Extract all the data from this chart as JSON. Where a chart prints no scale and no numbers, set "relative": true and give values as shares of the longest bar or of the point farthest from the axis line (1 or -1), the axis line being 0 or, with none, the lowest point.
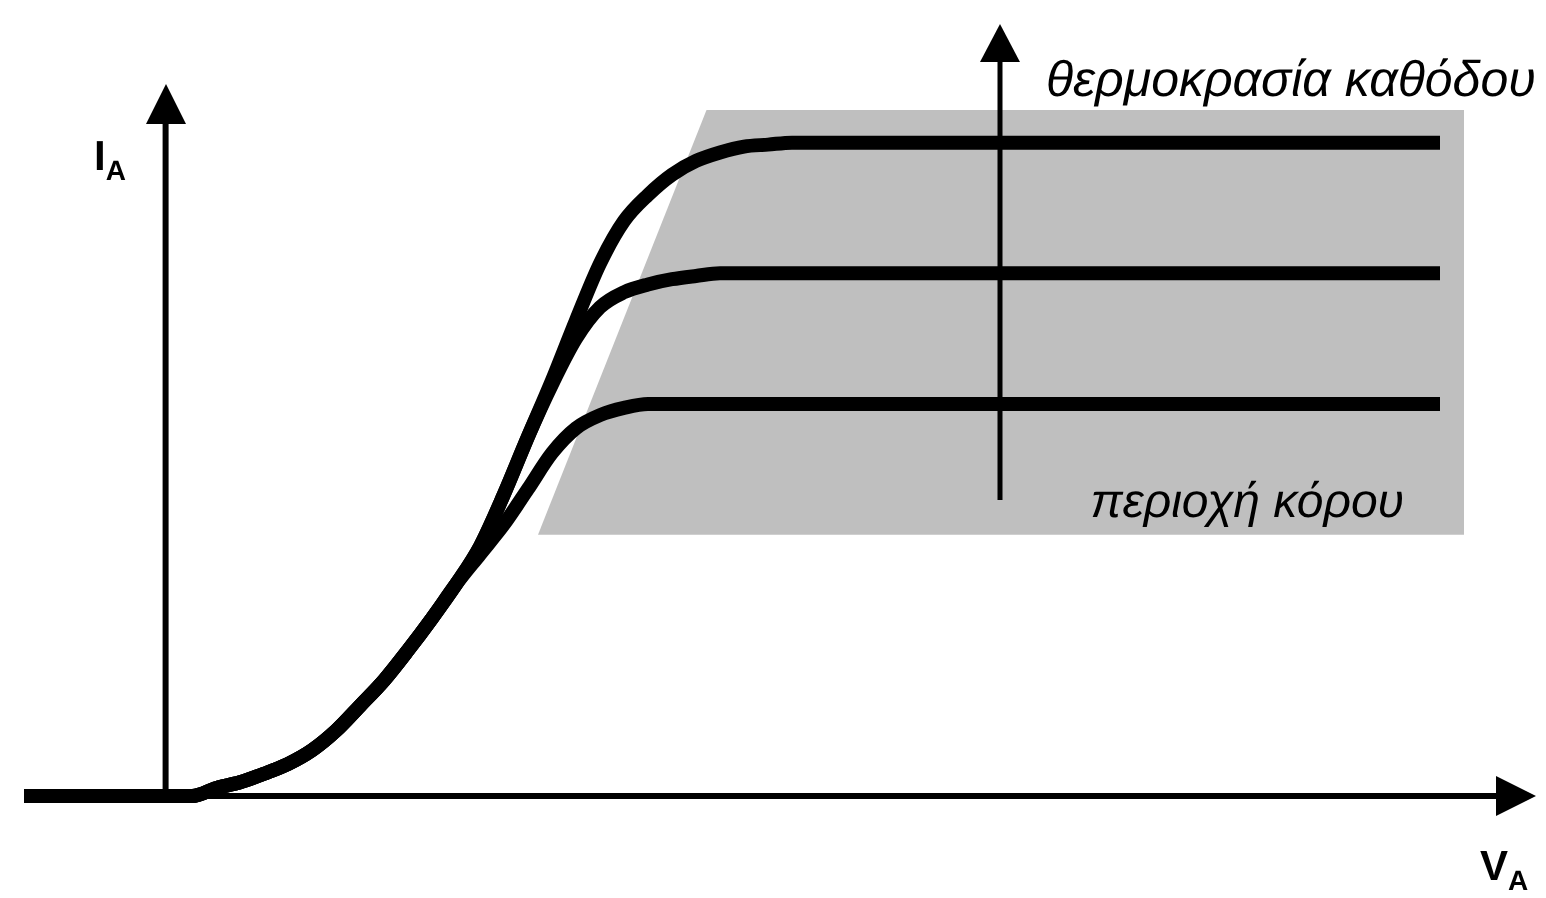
{
  "chart_data": {
    "type": "line",
    "xlabel": "V$_{A}$",
    "ylabel": "I$_{A}$",
    "annotations": [
      "θερμοκρασία καθόδου"
    ],
    "relative": true,
    "marker": "none",
    "line_style": "solid",
    "categories": [
      null,
      null,
      null,
      null,
      null,
      null,
      null,
      null,
      null,
      null,
      null,
      null,
      null,
      null,
      null,
      null,
      null,
      null,
      null,
      null,
      null,
      null,
      null,
      null,
      null,
      null,
      null,
      null,
      null,
      null,
      null,
      null,
      null,
      null,
      null,
      null,
      null,
      null,
      null,
      null,
      null,
      null,
      null,
      null,
      null,
      null,
      null,
      null,
      null,
      null,
      null,
      null,
      null,
      null,
      null,
      null,
      null,
      null,
      null,
      null
    ],
    "series": [
      {
        "color": "#000000",
        "values": [
          0,
          0,
          0,
          0,
          0,
          0,
          0,
          0,
          0.012,
          0.021,
          0.034,
          0.049,
          0.07,
          0.1,
          0.138,
          0.177,
          0.223,
          0.272,
          0.324,
          0.382,
          0.462,
          0.55,
          0.636,
          0.728,
          0.815,
          0.88,
          0.92,
          0.951,
          0.972,
          0.985,
          0.994,
          0.997,
          1,
          1,
          1,
          1,
          1,
          1,
          1,
          1,
          1,
          1,
          1,
          1,
          1,
          1,
          1,
          1,
          1,
          1,
          1,
          1,
          1,
          1,
          1,
          1,
          1,
          1,
          1,
          1
        ]
      },
      {
        "color": "#000000",
        "values": [
          0,
          0,
          0,
          0,
          0,
          0,
          0,
          0,
          0.012,
          0.021,
          0.034,
          0.049,
          0.07,
          0.1,
          0.138,
          0.177,
          0.223,
          0.272,
          0.324,
          0.382,
          0.462,
          0.55,
          0.63,
          0.7,
          0.748,
          0.771,
          0.783,
          0.791,
          0.796,
          0.8,
          0.8,
          0.8,
          0.8,
          0.8,
          0.8,
          0.8,
          0.8,
          0.8,
          0.8,
          0.8,
          0.8,
          0.8,
          0.8,
          0.8,
          0.8,
          0.8,
          0.8,
          0.8,
          0.8,
          0.8,
          0.8,
          0.8,
          0.8,
          0.8,
          0.8,
          0.8,
          0.8,
          0.8,
          0.8,
          0.8
        ]
      },
      {
        "color": "#000000",
        "values": [
          0,
          0,
          0,
          0,
          0,
          0,
          0,
          0,
          0.012,
          0.021,
          0.034,
          0.049,
          0.07,
          0.1,
          0.138,
          0.177,
          0.223,
          0.272,
          0.324,
          0.37,
          0.416,
          0.47,
          0.525,
          0.563,
          0.583,
          0.594,
          0.6,
          0.6,
          0.6,
          0.6,
          0.6,
          0.6,
          0.6,
          0.6,
          0.6,
          0.6,
          0.6,
          0.6,
          0.6,
          0.6,
          0.6,
          0.6,
          0.6,
          0.6,
          0.6,
          0.6,
          0.6,
          0.6,
          0.6,
          0.6,
          0.6,
          0.6,
          0.6,
          0.6,
          0.6,
          0.6,
          0.6,
          0.6,
          0.6,
          0.6
        ]
      }
    ],
    "bands": [
      {
        "axis": "y",
        "from": 0.4,
        "to": 1.05,
        "label": "περιοχή κόρου",
        "color": "#bfbfbf"
      }
    ]
  }
}
